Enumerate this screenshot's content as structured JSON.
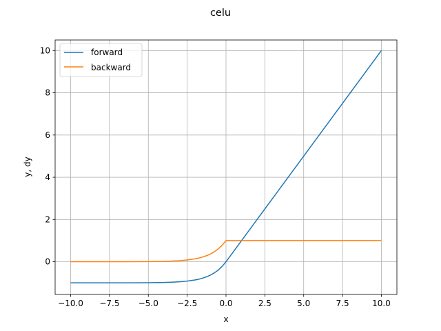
{
  "chart_data": {
    "type": "line",
    "title": "celu",
    "xlabel": "x",
    "ylabel": "y, dy",
    "xlim": [
      -11.0,
      11.0
    ],
    "ylim": [
      -1.55,
      10.5
    ],
    "grid": true,
    "legend_position": "top-left",
    "x_ticks": [
      -10.0,
      -7.5,
      -5.0,
      -2.5,
      0.0,
      2.5,
      5.0,
      7.5,
      10.0
    ],
    "x_tick_labels": [
      "−10.0",
      "−7.5",
      "−5.0",
      "−2.5",
      "0.0",
      "2.5",
      "5.0",
      "7.5",
      "10.0"
    ],
    "y_ticks": [
      0,
      2,
      4,
      6,
      8,
      10
    ],
    "y_tick_labels": [
      "0",
      "2",
      "4",
      "6",
      "8",
      "10"
    ],
    "series": [
      {
        "name": "forward",
        "color": "#1f77b4",
        "x": [
          -10,
          -9,
          -8,
          -7,
          -6,
          -5,
          -4,
          -3.5,
          -3,
          -2.5,
          -2,
          -1.75,
          -1.5,
          -1.25,
          -1,
          -0.75,
          -0.5,
          -0.25,
          0,
          1,
          2,
          3,
          4,
          5,
          6,
          7,
          8,
          9,
          10
        ],
        "y": [
          -1.0,
          -0.9999,
          -0.9997,
          -0.9991,
          -0.9975,
          -0.9933,
          -0.9817,
          -0.9698,
          -0.9502,
          -0.9179,
          -0.8647,
          -0.8262,
          -0.7769,
          -0.7135,
          -0.6321,
          -0.5276,
          -0.3935,
          -0.2212,
          0.0,
          1,
          2,
          3,
          4,
          5,
          6,
          7,
          8,
          9,
          10
        ]
      },
      {
        "name": "backward",
        "color": "#ff7f0e",
        "x": [
          -10,
          -9,
          -8,
          -7,
          -6,
          -5,
          -4,
          -3.5,
          -3,
          -2.5,
          -2,
          -1.75,
          -1.5,
          -1.25,
          -1,
          -0.75,
          -0.5,
          -0.25,
          0,
          0.001,
          1,
          2,
          3,
          4,
          5,
          6,
          7,
          8,
          9,
          10
        ],
        "y": [
          0.0,
          0.0001,
          0.0003,
          0.0009,
          0.0025,
          0.0067,
          0.0183,
          0.0302,
          0.0498,
          0.0821,
          0.1353,
          0.1738,
          0.2231,
          0.2865,
          0.3679,
          0.4724,
          0.6065,
          0.7788,
          1.0,
          1,
          1,
          1,
          1,
          1,
          1,
          1,
          1,
          1,
          1,
          1
        ]
      }
    ]
  }
}
